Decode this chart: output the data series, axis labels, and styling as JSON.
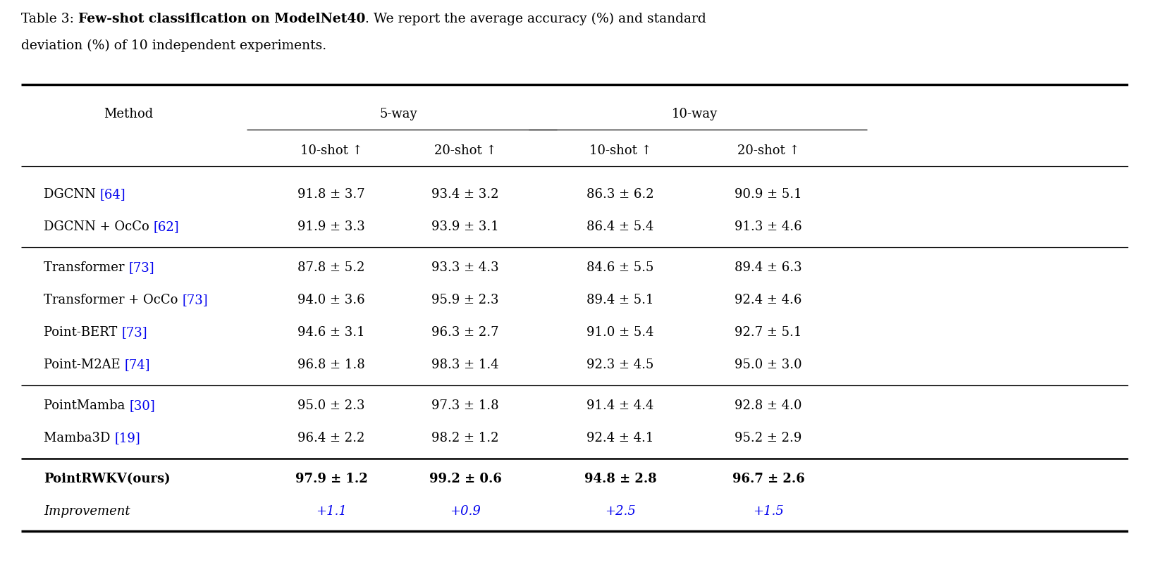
{
  "caption": [
    {
      "text": "Table 3: ",
      "bold": false
    },
    {
      "text": "Few-shot classification on ModelNet40",
      "bold": true
    },
    {
      "text": ". We report the average accuracy (%) and standard\ndeviation (%) of 10 independent experiments.",
      "bold": false
    }
  ],
  "col_groups": [
    {
      "label": "5-way",
      "cols": [
        0,
        1
      ]
    },
    {
      "label": "10-way",
      "cols": [
        2,
        3
      ]
    }
  ],
  "col_subheaders": [
    "10-shot ↑",
    "20-shot ↑",
    "10-shot ↑",
    "20-shot ↑"
  ],
  "method_col_header": "Method",
  "rows": [
    {
      "method_parts": [
        {
          "text": "DGCNN ",
          "blue": false
        },
        {
          "text": "[64]",
          "blue": true
        }
      ],
      "values": [
        "91.8 ± 3.7",
        "93.4 ± 3.2",
        "86.3 ± 6.2",
        "90.9 ± 5.1"
      ],
      "bold": false,
      "italic": false,
      "group": 0
    },
    {
      "method_parts": [
        {
          "text": "DGCNN + OcCo ",
          "blue": false
        },
        {
          "text": "[62]",
          "blue": true
        }
      ],
      "values": [
        "91.9 ± 3.3",
        "93.9 ± 3.1",
        "86.4 ± 5.4",
        "91.3 ± 4.6"
      ],
      "bold": false,
      "italic": false,
      "group": 0
    },
    {
      "method_parts": [
        {
          "text": "Transformer ",
          "blue": false
        },
        {
          "text": "[73]",
          "blue": true
        }
      ],
      "values": [
        "87.8 ± 5.2",
        "93.3 ± 4.3",
        "84.6 ± 5.5",
        "89.4 ± 6.3"
      ],
      "bold": false,
      "italic": false,
      "group": 1
    },
    {
      "method_parts": [
        {
          "text": "Transformer + OcCo ",
          "blue": false
        },
        {
          "text": "[73]",
          "blue": true
        }
      ],
      "values": [
        "94.0 ± 3.6",
        "95.9 ± 2.3",
        "89.4 ± 5.1",
        "92.4 ± 4.6"
      ],
      "bold": false,
      "italic": false,
      "group": 1
    },
    {
      "method_parts": [
        {
          "text": "Point-BERT ",
          "blue": false
        },
        {
          "text": "[73]",
          "blue": true
        }
      ],
      "values": [
        "94.6 ± 3.1",
        "96.3 ± 2.7",
        "91.0 ± 5.4",
        "92.7 ± 5.1"
      ],
      "bold": false,
      "italic": false,
      "group": 1
    },
    {
      "method_parts": [
        {
          "text": "Point-M2AE ",
          "blue": false
        },
        {
          "text": "[74]",
          "blue": true
        }
      ],
      "values": [
        "96.8 ± 1.8",
        "98.3 ± 1.4",
        "92.3 ± 4.5",
        "95.0 ± 3.0"
      ],
      "bold": false,
      "italic": false,
      "group": 1
    },
    {
      "method_parts": [
        {
          "text": "PointMamba ",
          "blue": false
        },
        {
          "text": "[30]",
          "blue": true
        }
      ],
      "values": [
        "95.0 ± 2.3",
        "97.3 ± 1.8",
        "91.4 ± 4.4",
        "92.8 ± 4.0"
      ],
      "bold": false,
      "italic": false,
      "group": 2
    },
    {
      "method_parts": [
        {
          "text": "Mamba3D ",
          "blue": false
        },
        {
          "text": "[19]",
          "blue": true
        }
      ],
      "values": [
        "96.4 ± 2.2",
        "98.2 ± 1.2",
        "92.4 ± 4.1",
        "95.2 ± 2.9"
      ],
      "bold": false,
      "italic": false,
      "group": 2
    },
    {
      "method_parts": [
        {
          "text": "PointRWKV(ours)",
          "blue": false
        }
      ],
      "values": [
        "97.9 ± 1.2",
        "99.2 ± 0.6",
        "94.8 ± 2.8",
        "96.7 ± 2.6"
      ],
      "bold": true,
      "italic": false,
      "group": 3
    },
    {
      "method_parts": [
        {
          "text": "Improvement",
          "blue": false
        }
      ],
      "values": [
        "+1.1",
        "+0.9",
        "+2.5",
        "+1.5"
      ],
      "bold": false,
      "italic": true,
      "group": 3
    }
  ],
  "group_sep_after": [
    1,
    5,
    7
  ],
  "last_sep_thick": 7,
  "improvement_color": "#0000EE",
  "background_color": "#ffffff",
  "blue_ref_color": "#0000EE",
  "font_size": 13.5,
  "table_font_size": 13.0
}
